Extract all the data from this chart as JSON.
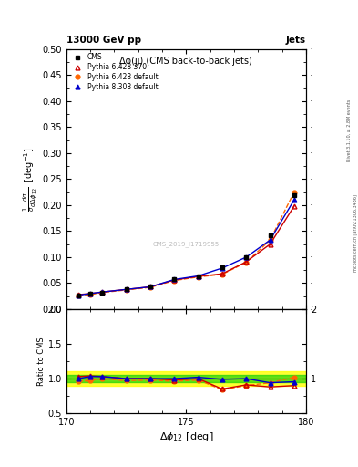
{
  "title_top": "13000 GeV pp",
  "title_right": "Jets",
  "plot_title": "Δφ(jj) (CMS back-to-back jets)",
  "ylabel_main_parts": [
    "$\\frac{1}{\\sigma}\\frac{d\\sigma}{d\\Delta\\phi_{12}}$",
    "[deg$^{-1}$]"
  ],
  "ylabel_ratio": "Ratio to CMS",
  "xlabel": "$\\Delta\\phi_{12}$ [deg]",
  "watermark": "CMS_2019_I1719955",
  "right_label": "mcplots.cern.ch [arXiv:1306.3436]",
  "rivet_label": "Rivet 3.1.10, ≥ 2.8M events",
  "cms_x": [
    170.5,
    171.0,
    171.5,
    172.5,
    173.5,
    174.5,
    175.5,
    176.5,
    177.5,
    178.5,
    179.5
  ],
  "cms_y": [
    0.027,
    0.029,
    0.032,
    0.038,
    0.043,
    0.057,
    0.063,
    0.08,
    0.1,
    0.142,
    0.22
  ],
  "py6_370_y": [
    0.028,
    0.03,
    0.033,
    0.038,
    0.043,
    0.056,
    0.063,
    0.068,
    0.091,
    0.125,
    0.198
  ],
  "py6_def_y": [
    0.026,
    0.028,
    0.032,
    0.037,
    0.042,
    0.055,
    0.062,
    0.067,
    0.09,
    0.133,
    0.225
  ],
  "py8_def_y": [
    0.027,
    0.03,
    0.033,
    0.038,
    0.043,
    0.057,
    0.064,
    0.079,
    0.1,
    0.133,
    0.21
  ],
  "py6_370_ratio": [
    1.03,
    1.04,
    1.03,
    1.0,
    1.0,
    0.98,
    1.0,
    0.85,
    0.91,
    0.88,
    0.9
  ],
  "py6_def_ratio": [
    0.96,
    0.97,
    1.0,
    0.97,
    0.98,
    0.96,
    0.98,
    0.84,
    0.9,
    0.94,
    1.02
  ],
  "py8_def_ratio": [
    1.0,
    1.03,
    1.03,
    1.0,
    1.0,
    1.0,
    1.02,
    0.99,
    1.0,
    0.94,
    0.955
  ],
  "cms_color": "#000000",
  "py6_370_color": "#cc0000",
  "py6_def_color": "#ff6600",
  "py8_def_color": "#0000cc",
  "ylim_main": [
    0.0,
    0.5
  ],
  "ylim_ratio": [
    0.5,
    2.0
  ],
  "xlim": [
    170.0,
    180.0
  ],
  "band_yellow": [
    0.9,
    1.1
  ],
  "band_green": [
    0.95,
    1.05
  ],
  "legend_labels": [
    "CMS",
    "Pythia 6.428 370",
    "Pythia 6.428 default",
    "Pythia 8.308 default"
  ]
}
